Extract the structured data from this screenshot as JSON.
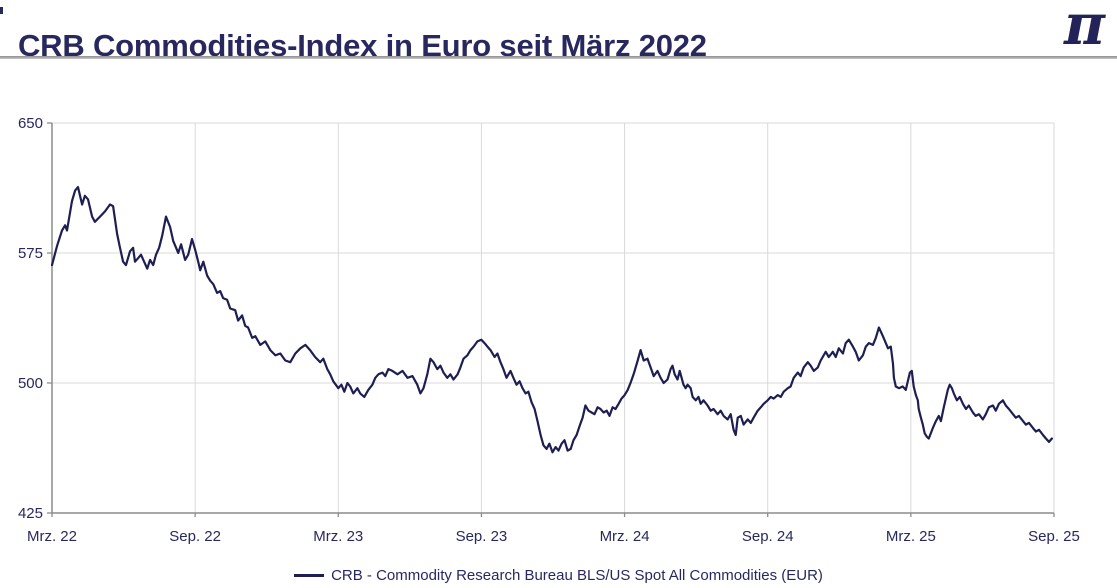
{
  "header": {
    "title": "CRB Commodities-Index in Euro seit März 2022",
    "logo_glyph": "π"
  },
  "colors": {
    "navy_text": "#28285f",
    "series_line": "#1e1e52",
    "gridline": "#d9d9d9",
    "axis_line": "#8c8c8c",
    "separator": "#a8a8a8"
  },
  "legend": {
    "entries": [
      "CRB - Commodity Research Bureau BLS/US Spot All Commodities (EUR)"
    ]
  },
  "chart_data": {
    "type": "line",
    "title": "CRB Commodities-Index in Euro seit März 2022",
    "xlabel": "",
    "ylabel": "",
    "x_unit": "months since März 2022",
    "xlim": [
      0,
      42
    ],
    "ylim": [
      425,
      650
    ],
    "y_ticks": [
      650,
      575,
      500,
      425
    ],
    "x_ticks": [
      {
        "pos": 0,
        "label": "Mrz. 22"
      },
      {
        "pos": 6,
        "label": "Sep. 22"
      },
      {
        "pos": 12,
        "label": "Mrz. 23"
      },
      {
        "pos": 18,
        "label": "Sep. 23"
      },
      {
        "pos": 24,
        "label": "Mrz. 24"
      },
      {
        "pos": 30,
        "label": "Sep. 24"
      },
      {
        "pos": 36,
        "label": "Mrz. 25"
      },
      {
        "pos": 42,
        "label": "Sep. 25"
      }
    ],
    "grid": true,
    "legend_position": "bottom-center",
    "line_color": "#1e1e52",
    "series": [
      {
        "name": "CRB - Commodity Research Bureau BLS/US Spot All Commodities (EUR)",
        "points": [
          [
            0,
            568
          ],
          [
            0.21,
            579
          ],
          [
            0.42,
            588
          ],
          [
            0.55,
            591
          ],
          [
            0.63,
            588
          ],
          [
            0.84,
            605
          ],
          [
            0.97,
            611
          ],
          [
            1.09,
            613
          ],
          [
            1.26,
            603
          ],
          [
            1.38,
            608
          ],
          [
            1.51,
            606
          ],
          [
            1.68,
            596
          ],
          [
            1.8,
            593
          ],
          [
            2.01,
            596
          ],
          [
            2.22,
            599
          ],
          [
            2.43,
            603
          ],
          [
            2.56,
            602
          ],
          [
            2.73,
            586
          ],
          [
            2.85,
            578
          ],
          [
            2.98,
            570
          ],
          [
            3.1,
            568
          ],
          [
            3.27,
            576
          ],
          [
            3.4,
            578
          ],
          [
            3.48,
            570
          ],
          [
            3.61,
            572
          ],
          [
            3.73,
            574
          ],
          [
            3.86,
            570
          ],
          [
            3.99,
            566
          ],
          [
            4.11,
            571
          ],
          [
            4.24,
            568
          ],
          [
            4.36,
            574
          ],
          [
            4.49,
            578
          ],
          [
            4.62,
            585
          ],
          [
            4.78,
            596
          ],
          [
            4.95,
            590
          ],
          [
            5.08,
            582
          ],
          [
            5.2,
            578
          ],
          [
            5.29,
            575
          ],
          [
            5.41,
            580
          ],
          [
            5.58,
            571
          ],
          [
            5.71,
            574
          ],
          [
            5.87,
            583
          ],
          [
            6,
            577
          ],
          [
            6.13,
            570
          ],
          [
            6.21,
            565
          ],
          [
            6.34,
            570
          ],
          [
            6.5,
            562
          ],
          [
            6.63,
            559
          ],
          [
            6.76,
            557
          ],
          [
            6.92,
            552
          ],
          [
            7.05,
            553
          ],
          [
            7.17,
            549
          ],
          [
            7.34,
            548
          ],
          [
            7.47,
            543
          ],
          [
            7.68,
            542
          ],
          [
            7.8,
            536
          ],
          [
            7.97,
            539
          ],
          [
            8.1,
            533
          ],
          [
            8.22,
            532
          ],
          [
            8.39,
            526
          ],
          [
            8.52,
            527
          ],
          [
            8.73,
            522
          ],
          [
            8.94,
            524
          ],
          [
            9.15,
            519
          ],
          [
            9.36,
            516
          ],
          [
            9.57,
            517
          ],
          [
            9.78,
            513
          ],
          [
            9.99,
            512
          ],
          [
            10.2,
            517
          ],
          [
            10.41,
            520
          ],
          [
            10.62,
            522
          ],
          [
            10.82,
            519
          ],
          [
            11.03,
            515
          ],
          [
            11.24,
            512
          ],
          [
            11.37,
            514
          ],
          [
            11.54,
            508
          ],
          [
            11.66,
            505
          ],
          [
            11.79,
            501
          ],
          [
            12,
            497
          ],
          [
            12.13,
            499
          ],
          [
            12.25,
            495
          ],
          [
            12.38,
            500
          ],
          [
            12.5,
            498
          ],
          [
            12.63,
            494
          ],
          [
            12.8,
            497
          ],
          [
            12.92,
            494
          ],
          [
            13.09,
            492
          ],
          [
            13.26,
            496
          ],
          [
            13.43,
            499
          ],
          [
            13.55,
            503
          ],
          [
            13.68,
            505
          ],
          [
            13.85,
            506
          ],
          [
            13.97,
            504
          ],
          [
            14.1,
            508
          ],
          [
            14.27,
            507
          ],
          [
            14.48,
            505
          ],
          [
            14.69,
            507
          ],
          [
            14.9,
            503
          ],
          [
            15.11,
            504
          ],
          [
            15.31,
            499
          ],
          [
            15.44,
            494
          ],
          [
            15.57,
            497
          ],
          [
            15.73,
            505
          ],
          [
            15.86,
            514
          ],
          [
            15.99,
            512
          ],
          [
            16.15,
            508
          ],
          [
            16.28,
            510
          ],
          [
            16.41,
            506
          ],
          [
            16.57,
            503
          ],
          [
            16.7,
            505
          ],
          [
            16.83,
            502
          ],
          [
            17,
            505
          ],
          [
            17.12,
            509
          ],
          [
            17.25,
            514
          ],
          [
            17.41,
            516
          ],
          [
            17.54,
            519
          ],
          [
            17.67,
            521
          ],
          [
            17.83,
            524
          ],
          [
            18,
            525
          ],
          [
            18.13,
            523
          ],
          [
            18.25,
            521
          ],
          [
            18.38,
            519
          ],
          [
            18.55,
            515
          ],
          [
            18.67,
            517
          ],
          [
            18.8,
            512
          ],
          [
            18.92,
            508
          ],
          [
            19.05,
            503
          ],
          [
            19.22,
            507
          ],
          [
            19.34,
            503
          ],
          [
            19.47,
            499
          ],
          [
            19.6,
            501
          ],
          [
            19.72,
            497
          ],
          [
            19.85,
            494
          ],
          [
            19.97,
            495
          ],
          [
            20.1,
            489
          ],
          [
            20.23,
            485
          ],
          [
            20.35,
            478
          ],
          [
            20.48,
            470
          ],
          [
            20.6,
            464
          ],
          [
            20.73,
            462
          ],
          [
            20.85,
            465
          ],
          [
            20.98,
            460
          ],
          [
            21.11,
            463
          ],
          [
            21.23,
            461
          ],
          [
            21.36,
            465
          ],
          [
            21.48,
            467
          ],
          [
            21.61,
            461
          ],
          [
            21.74,
            462
          ],
          [
            21.86,
            467
          ],
          [
            21.99,
            470
          ],
          [
            22.11,
            475
          ],
          [
            22.24,
            480
          ],
          [
            22.36,
            487
          ],
          [
            22.49,
            484
          ],
          [
            22.62,
            483
          ],
          [
            22.74,
            482
          ],
          [
            22.87,
            486
          ],
          [
            22.99,
            485
          ],
          [
            23.12,
            483
          ],
          [
            23.25,
            484
          ],
          [
            23.37,
            481
          ],
          [
            23.5,
            486
          ],
          [
            23.62,
            485
          ],
          [
            23.75,
            488
          ],
          [
            23.87,
            491
          ],
          [
            24,
            493
          ],
          [
            24.13,
            496
          ],
          [
            24.25,
            500
          ],
          [
            24.38,
            505
          ],
          [
            24.55,
            513
          ],
          [
            24.67,
            519
          ],
          [
            24.8,
            513
          ],
          [
            24.96,
            514
          ],
          [
            25.09,
            509
          ],
          [
            25.22,
            504
          ],
          [
            25.38,
            507
          ],
          [
            25.51,
            503
          ],
          [
            25.64,
            500
          ],
          [
            25.8,
            502
          ],
          [
            25.93,
            508
          ],
          [
            26.01,
            510
          ],
          [
            26.1,
            505
          ],
          [
            26.22,
            502
          ],
          [
            26.31,
            507
          ],
          [
            26.39,
            503
          ],
          [
            26.47,
            499
          ],
          [
            26.56,
            497
          ],
          [
            26.64,
            499
          ],
          [
            26.77,
            497
          ],
          [
            26.85,
            492
          ],
          [
            26.98,
            490
          ],
          [
            27.1,
            492
          ],
          [
            27.19,
            488
          ],
          [
            27.31,
            490
          ],
          [
            27.48,
            487
          ],
          [
            27.61,
            484
          ],
          [
            27.73,
            485
          ],
          [
            27.9,
            482
          ],
          [
            28.03,
            484
          ],
          [
            28.15,
            481
          ],
          [
            28.32,
            479
          ],
          [
            28.45,
            482
          ],
          [
            28.57,
            473
          ],
          [
            28.66,
            470
          ],
          [
            28.74,
            480
          ],
          [
            28.87,
            481
          ],
          [
            28.99,
            476
          ],
          [
            29.16,
            479
          ],
          [
            29.29,
            477
          ],
          [
            29.41,
            480
          ],
          [
            29.58,
            484
          ],
          [
            29.71,
            486
          ],
          [
            29.83,
            488
          ],
          [
            30,
            490
          ],
          [
            30.13,
            492
          ],
          [
            30.25,
            491
          ],
          [
            30.42,
            493
          ],
          [
            30.55,
            492
          ],
          [
            30.67,
            495
          ],
          [
            30.84,
            497
          ],
          [
            30.96,
            498
          ],
          [
            31.09,
            503
          ],
          [
            31.26,
            506
          ],
          [
            31.38,
            504
          ],
          [
            31.51,
            509
          ],
          [
            31.68,
            512
          ],
          [
            31.8,
            510
          ],
          [
            31.93,
            507
          ],
          [
            32.1,
            509
          ],
          [
            32.22,
            513
          ],
          [
            32.43,
            518
          ],
          [
            32.56,
            515
          ],
          [
            32.73,
            518
          ],
          [
            32.85,
            515
          ],
          [
            32.98,
            520
          ],
          [
            33.15,
            517
          ],
          [
            33.27,
            523
          ],
          [
            33.4,
            525
          ],
          [
            33.57,
            521
          ],
          [
            33.69,
            518
          ],
          [
            33.82,
            513
          ],
          [
            33.99,
            516
          ],
          [
            34.11,
            521
          ],
          [
            34.24,
            523
          ],
          [
            34.41,
            522
          ],
          [
            34.53,
            526
          ],
          [
            34.66,
            532
          ],
          [
            34.83,
            527
          ],
          [
            34.95,
            523
          ],
          [
            35.04,
            520
          ],
          [
            35.16,
            521
          ],
          [
            35.25,
            511
          ],
          [
            35.29,
            503
          ],
          [
            35.37,
            498
          ],
          [
            35.5,
            497
          ],
          [
            35.66,
            498
          ],
          [
            35.79,
            496
          ],
          [
            35.87,
            501
          ],
          [
            35.96,
            506
          ],
          [
            36.04,
            507
          ],
          [
            36.12,
            498
          ],
          [
            36.21,
            493
          ],
          [
            36.29,
            490
          ],
          [
            36.33,
            485
          ],
          [
            36.42,
            480
          ],
          [
            36.5,
            476
          ],
          [
            36.58,
            471
          ],
          [
            36.67,
            469
          ],
          [
            36.75,
            468
          ],
          [
            36.92,
            474
          ],
          [
            37.05,
            478
          ],
          [
            37.17,
            481
          ],
          [
            37.26,
            478
          ],
          [
            37.38,
            486
          ],
          [
            37.55,
            496
          ],
          [
            37.63,
            499
          ],
          [
            37.72,
            497
          ],
          [
            37.8,
            494
          ],
          [
            37.93,
            490
          ],
          [
            38.05,
            492
          ],
          [
            38.18,
            488
          ],
          [
            38.31,
            485
          ],
          [
            38.43,
            487
          ],
          [
            38.6,
            483
          ],
          [
            38.72,
            481
          ],
          [
            38.85,
            482
          ],
          [
            39.02,
            479
          ],
          [
            39.14,
            482
          ],
          [
            39.27,
            486
          ],
          [
            39.44,
            487
          ],
          [
            39.56,
            484
          ],
          [
            39.69,
            488
          ],
          [
            39.86,
            490
          ],
          [
            39.98,
            487
          ],
          [
            40.11,
            485
          ],
          [
            40.28,
            482
          ],
          [
            40.4,
            480
          ],
          [
            40.53,
            481
          ],
          [
            40.7,
            478
          ],
          [
            40.82,
            476
          ],
          [
            40.95,
            477
          ],
          [
            41.12,
            474
          ],
          [
            41.24,
            472
          ],
          [
            41.37,
            473
          ],
          [
            41.54,
            470
          ],
          [
            41.66,
            468
          ],
          [
            41.79,
            466
          ],
          [
            41.91,
            468
          ]
        ]
      }
    ]
  }
}
